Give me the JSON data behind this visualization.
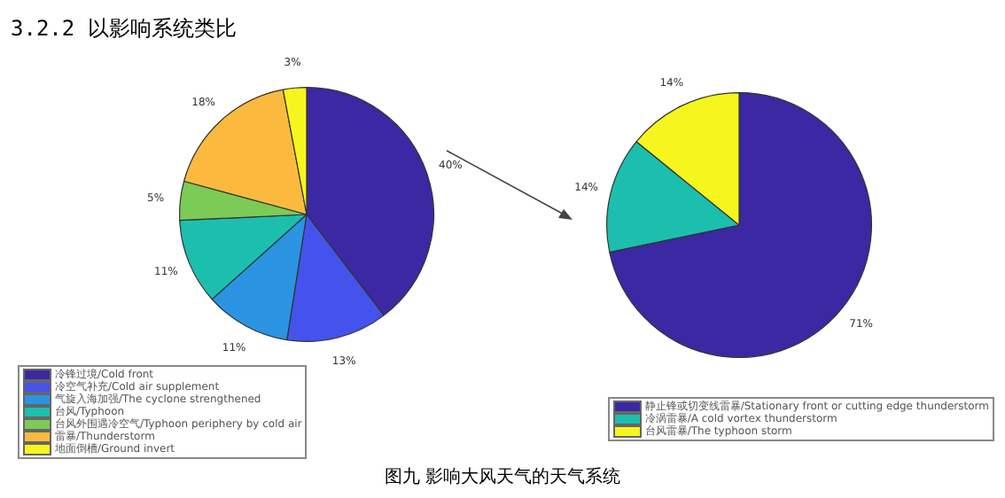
{
  "chart_data": [
    {
      "type": "pie",
      "title": "3.2.2 以影响系统类比",
      "categories": [
        "冷锋过境/Cold front",
        "冷空气补充/Cold air supplement",
        "气旋入海加强/The cyclone strengthened",
        "台风/Typhoon",
        "台风外围遇冷空气/Typhoon periphery by cold air",
        "雷暴/Thunderstorm",
        "地面倒槽/Ground invert"
      ],
      "values": [
        40,
        13,
        11,
        11,
        5,
        18,
        3
      ],
      "value_labels": [
        "40%",
        "13%",
        "11%",
        "11%",
        "5%",
        "18%",
        "3%"
      ],
      "colors": [
        "#3b28a2",
        "#4453ec",
        "#2b94e2",
        "#1cbfae",
        "#7ccb56",
        "#fbba3e",
        "#f6f61e"
      ],
      "legend": "bottom left"
    },
    {
      "type": "pie",
      "categories": [
        "静止锋或切变线雷暴/Stationary front or cutting edge thunderstorm",
        "冷涡雷暴/A cold vortex thunderstorm",
        "台风雷暴/The typhoon storm"
      ],
      "values": [
        71,
        14,
        14
      ],
      "value_labels": [
        "71%",
        "14%",
        "14%"
      ],
      "colors": [
        "#3b28a2",
        "#1cbfae",
        "#f6f61e"
      ],
      "legend": "bottom right",
      "annotations": [
        "图九 影响大风天气的天气系统"
      ]
    }
  ]
}
